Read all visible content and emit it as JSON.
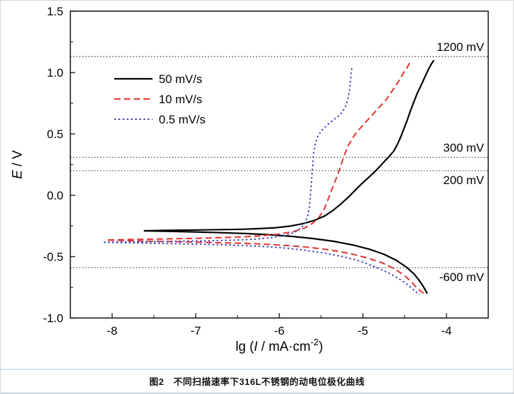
{
  "caption": {
    "text": "图2　不同扫描速率下316L不锈钢的动电位极化曲线"
  },
  "chart_data": {
    "type": "line",
    "title": "图2 不同扫描速率下316L不锈钢的动电位极化曲线",
    "xlabel": "lg (I / mA·cm⁻²)",
    "ylabel": "E / V",
    "xlabel_parts": [
      {
        "text": "lg ("
      },
      {
        "text": "I",
        "italic": true
      },
      {
        "text": " / mA·cm"
      },
      {
        "text": "-2",
        "sup": true
      },
      {
        "text": ")"
      }
    ],
    "ylabel_parts": [
      {
        "text": "E",
        "italic": true
      },
      {
        "text": " / V"
      }
    ],
    "xlim": [
      -8.5,
      -3.5
    ],
    "ylim": [
      -1.0,
      1.5
    ],
    "grid": false,
    "xaxis": {
      "major": [
        -8,
        -7,
        -6,
        -5,
        -4
      ],
      "labels": [
        "-8",
        "-7",
        "-6",
        "-5",
        "-4"
      ],
      "minor": [
        -7.5,
        -6.5,
        -5.5,
        -4.5
      ]
    },
    "yaxis": {
      "major": [
        -1.0,
        -0.5,
        0.0,
        0.5,
        1.0,
        1.5
      ],
      "labels": [
        "-1.0",
        "-0.5",
        "0.0",
        "0.5",
        "1.0",
        "1.5"
      ],
      "minor": [
        -0.75,
        -0.25,
        0.25,
        0.75,
        1.25
      ]
    },
    "legend": {
      "position": "upper-left",
      "entries": [
        {
          "label": "50 mV/s",
          "series": 0
        },
        {
          "label": "10 mV/s",
          "series": 1
        },
        {
          "label": "0.5 mV/s",
          "series": 2
        }
      ]
    },
    "reference_lines": [
      {
        "label": "1200 mV",
        "mV": 1200,
        "E_plot": 1.13,
        "label_side": "above"
      },
      {
        "label": "300 mV",
        "mV": 300,
        "E_plot": 0.31,
        "label_side": "above"
      },
      {
        "label": "200 mV",
        "mV": 200,
        "E_plot": 0.2,
        "label_side": "below"
      },
      {
        "label": "-600 mV",
        "mV": -600,
        "E_plot": -0.59,
        "label_side": "below"
      }
    ],
    "series": [
      {
        "name": "50 mV/s",
        "color": "#000000",
        "dash": "",
        "width": 2.2,
        "segments": [
          [
            [
              -7.62,
              -0.29
            ],
            [
              -7.35,
              -0.286
            ],
            [
              -7.0,
              -0.283
            ],
            [
              -6.7,
              -0.28
            ],
            [
              -6.45,
              -0.277
            ],
            [
              -6.25,
              -0.272
            ],
            [
              -6.05,
              -0.265
            ],
            [
              -5.88,
              -0.252
            ],
            [
              -5.72,
              -0.232
            ],
            [
              -5.58,
              -0.205
            ],
            [
              -5.46,
              -0.17
            ],
            [
              -5.36,
              -0.125
            ],
            [
              -5.27,
              -0.075
            ],
            [
              -5.18,
              -0.02
            ],
            [
              -5.1,
              0.035
            ],
            [
              -5.02,
              0.09
            ],
            [
              -4.94,
              0.14
            ],
            [
              -4.86,
              0.19
            ],
            [
              -4.79,
              0.24
            ],
            [
              -4.73,
              0.285
            ],
            [
              -4.68,
              0.32
            ],
            [
              -4.63,
              0.36
            ],
            [
              -4.59,
              0.41
            ],
            [
              -4.55,
              0.47
            ],
            [
              -4.51,
              0.54
            ],
            [
              -4.47,
              0.61
            ],
            [
              -4.43,
              0.69
            ],
            [
              -4.39,
              0.76
            ],
            [
              -4.35,
              0.83
            ],
            [
              -4.3,
              0.9
            ],
            [
              -4.26,
              0.96
            ],
            [
              -4.22,
              1.02
            ],
            [
              -4.18,
              1.07
            ],
            [
              -4.15,
              1.1
            ]
          ],
          [
            [
              -7.62,
              -0.29
            ],
            [
              -7.35,
              -0.294
            ],
            [
              -7.0,
              -0.299
            ],
            [
              -6.7,
              -0.305
            ],
            [
              -6.4,
              -0.312
            ],
            [
              -6.1,
              -0.322
            ],
            [
              -5.85,
              -0.335
            ],
            [
              -5.6,
              -0.352
            ],
            [
              -5.35,
              -0.375
            ],
            [
              -5.12,
              -0.405
            ],
            [
              -4.92,
              -0.44
            ],
            [
              -4.75,
              -0.48
            ],
            [
              -4.6,
              -0.53
            ],
            [
              -4.48,
              -0.585
            ],
            [
              -4.39,
              -0.64
            ],
            [
              -4.33,
              -0.69
            ],
            [
              -4.28,
              -0.74
            ],
            [
              -4.25,
              -0.775
            ],
            [
              -4.23,
              -0.8
            ]
          ]
        ]
      },
      {
        "name": "10 mV/s",
        "color": "#e0312e",
        "dash": "9 5",
        "width": 2,
        "segments": [
          [
            [
              -8.05,
              -0.365
            ],
            [
              -7.7,
              -0.359
            ],
            [
              -7.4,
              -0.356
            ],
            [
              -7.1,
              -0.352
            ],
            [
              -6.8,
              -0.347
            ],
            [
              -6.5,
              -0.341
            ],
            [
              -6.25,
              -0.332
            ],
            [
              -6.02,
              -0.318
            ],
            [
              -5.84,
              -0.298
            ],
            [
              -5.7,
              -0.268
            ],
            [
              -5.6,
              -0.228
            ],
            [
              -5.52,
              -0.175
            ],
            [
              -5.46,
              -0.11
            ],
            [
              -5.42,
              -0.04
            ],
            [
              -5.38,
              0.03
            ],
            [
              -5.34,
              0.1
            ],
            [
              -5.3,
              0.17
            ],
            [
              -5.26,
              0.25
            ],
            [
              -5.22,
              0.33
            ],
            [
              -5.17,
              0.41
            ],
            [
              -5.11,
              0.48
            ],
            [
              -5.04,
              0.54
            ],
            [
              -4.96,
              0.6
            ],
            [
              -4.88,
              0.66
            ],
            [
              -4.8,
              0.72
            ],
            [
              -4.72,
              0.78
            ],
            [
              -4.65,
              0.85
            ],
            [
              -4.58,
              0.92
            ],
            [
              -4.52,
              0.99
            ],
            [
              -4.47,
              1.04
            ],
            [
              -4.44,
              1.08
            ]
          ],
          [
            [
              -8.05,
              -0.365
            ],
            [
              -7.7,
              -0.372
            ],
            [
              -7.4,
              -0.376
            ],
            [
              -7.1,
              -0.38
            ],
            [
              -6.8,
              -0.385
            ],
            [
              -6.5,
              -0.39
            ],
            [
              -6.2,
              -0.398
            ],
            [
              -5.92,
              -0.409
            ],
            [
              -5.65,
              -0.424
            ],
            [
              -5.4,
              -0.445
            ],
            [
              -5.15,
              -0.475
            ],
            [
              -4.95,
              -0.51
            ],
            [
              -4.77,
              -0.55
            ],
            [
              -4.62,
              -0.6
            ],
            [
              -4.5,
              -0.655
            ],
            [
              -4.42,
              -0.705
            ],
            [
              -4.36,
              -0.75
            ],
            [
              -4.31,
              -0.78
            ],
            [
              -4.27,
              -0.8
            ]
          ]
        ]
      },
      {
        "name": "0.5 mV/s",
        "color": "#4646b8",
        "dash": "2.5 3.5",
        "width": 2,
        "segments": [
          [
            [
              -8.1,
              -0.383
            ],
            [
              -7.75,
              -0.379
            ],
            [
              -7.45,
              -0.377
            ],
            [
              -7.15,
              -0.374
            ],
            [
              -6.85,
              -0.371
            ],
            [
              -6.55,
              -0.366
            ],
            [
              -6.3,
              -0.358
            ],
            [
              -6.1,
              -0.346
            ],
            [
              -5.94,
              -0.328
            ],
            [
              -5.82,
              -0.302
            ],
            [
              -5.74,
              -0.268
            ],
            [
              -5.69,
              -0.225
            ],
            [
              -5.66,
              -0.17
            ],
            [
              -5.64,
              -0.1
            ],
            [
              -5.63,
              -0.02
            ],
            [
              -5.62,
              0.07
            ],
            [
              -5.61,
              0.16
            ],
            [
              -5.6,
              0.25
            ],
            [
              -5.59,
              0.34
            ],
            [
              -5.57,
              0.42
            ],
            [
              -5.54,
              0.48
            ],
            [
              -5.49,
              0.53
            ],
            [
              -5.43,
              0.57
            ],
            [
              -5.36,
              0.61
            ],
            [
              -5.3,
              0.64
            ],
            [
              -5.25,
              0.675
            ],
            [
              -5.21,
              0.72
            ],
            [
              -5.18,
              0.78
            ],
            [
              -5.16,
              0.85
            ],
            [
              -5.15,
              0.92
            ],
            [
              -5.14,
              0.99
            ],
            [
              -5.13,
              1.05
            ]
          ],
          [
            [
              -8.1,
              -0.383
            ],
            [
              -7.75,
              -0.388
            ],
            [
              -7.45,
              -0.392
            ],
            [
              -7.15,
              -0.396
            ],
            [
              -6.85,
              -0.4
            ],
            [
              -6.55,
              -0.406
            ],
            [
              -6.25,
              -0.415
            ],
            [
              -5.97,
              -0.428
            ],
            [
              -5.7,
              -0.447
            ],
            [
              -5.45,
              -0.472
            ],
            [
              -5.22,
              -0.503
            ],
            [
              -5.02,
              -0.54
            ],
            [
              -4.85,
              -0.585
            ],
            [
              -4.7,
              -0.63
            ],
            [
              -4.58,
              -0.675
            ],
            [
              -4.48,
              -0.72
            ],
            [
              -4.41,
              -0.76
            ],
            [
              -4.36,
              -0.79
            ],
            [
              -4.32,
              -0.81
            ]
          ]
        ]
      }
    ]
  }
}
